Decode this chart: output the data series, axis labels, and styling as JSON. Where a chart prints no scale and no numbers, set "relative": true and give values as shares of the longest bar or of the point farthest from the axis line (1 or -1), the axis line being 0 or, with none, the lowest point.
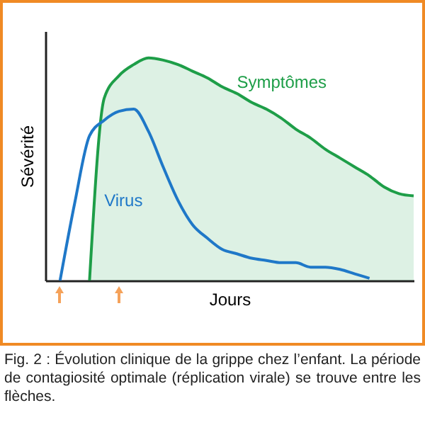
{
  "chart_data": {
    "type": "line",
    "relative": true,
    "xlabel": "Jours",
    "ylabel": "Sévérité",
    "legend": false,
    "categories": [
      null,
      null,
      null,
      null,
      null,
      null,
      null,
      null,
      null,
      null,
      null,
      null,
      null,
      null,
      null,
      null,
      null,
      null,
      null,
      null,
      null,
      null,
      null,
      null,
      null,
      null
    ],
    "series": [
      {
        "name": "Symptômes",
        "type": "area",
        "color": "#1e9e48",
        "values": [
          null,
          null,
          null,
          0,
          0.82,
          0.92,
          0.97,
          1.0,
          0.99,
          0.97,
          0.94,
          0.91,
          0.87,
          0.84,
          0.8,
          0.77,
          0.73,
          0.68,
          0.64,
          0.59,
          0.55,
          0.51,
          0.47,
          0.42,
          0.39,
          0.38
        ]
      },
      {
        "name": "Virus",
        "type": "line",
        "color": "#1f78c8",
        "values": [
          null,
          0,
          0.35,
          0.65,
          0.72,
          0.76,
          0.77,
          0.67,
          0.51,
          0.36,
          0.25,
          0.19,
          0.14,
          0.12,
          0.1,
          0.09,
          0.08,
          0.08,
          0.06,
          0.06,
          0.05,
          0.03,
          0.01,
          null,
          null,
          null
        ]
      }
    ],
    "annotations": [
      "Fig. 2 : Évolution clinique de la grippe chez l’enfant. La période de contagiosité optimale (réplication virale) se trouve entre les flèches."
    ]
  }
}
